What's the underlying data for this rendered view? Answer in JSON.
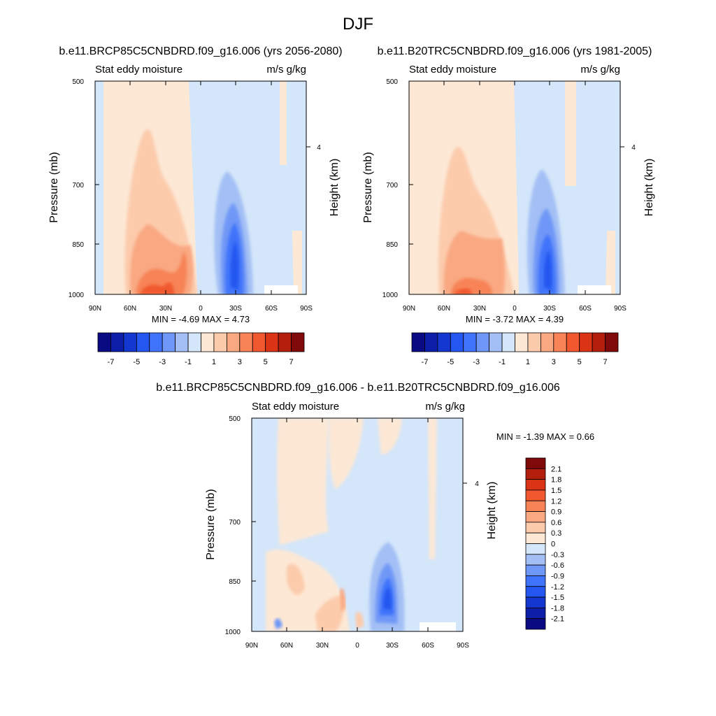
{
  "main_title": "DJF",
  "panels": [
    {
      "id": "future",
      "title": "b.e11.BRCP85C5CNBDRD.f09_g16.006 (yrs 2056-2080)",
      "left_label": "Stat eddy moisture",
      "right_label": "m/s g/kg",
      "ylabel": "Pressure (mb)",
      "ylabel_right": "Height (km)",
      "stats": "MIN =  -4.69  MAX =   4.73"
    },
    {
      "id": "present",
      "title": "b.e11.B20TRC5CNBDRD.f09_g16.006 (yrs 1981-2005)",
      "left_label": "Stat eddy moisture",
      "right_label": "m/s g/kg",
      "ylabel": "Pressure (mb)",
      "ylabel_right": "Height (km)",
      "stats": "MIN =  -3.72  MAX =   4.39"
    },
    {
      "id": "difference",
      "title": "b.e11.BRCP85C5CNBDRD.f09_g16.006 - b.e11.B20TRC5CNBDRD.f09_g16.006",
      "left_label": "Stat eddy moisture",
      "right_label": "m/s g/kg",
      "ylabel": "Pressure (mb)",
      "ylabel_right": "Height (km)",
      "stats": "MIN =  -1.39  MAX =   0.66"
    }
  ],
  "x_ticks": [
    "90N",
    "60N",
    "30N",
    "0",
    "30S",
    "60S",
    "90S"
  ],
  "y_ticks": [
    "500",
    "700",
    "850",
    "1000"
  ],
  "y_right_tick": "4",
  "colorbar_main": {
    "labels": [
      "-7",
      "-5",
      "-3",
      "-1",
      "1",
      "3",
      "5",
      "7"
    ],
    "colors": [
      "#0a0a82",
      "#0d1fa8",
      "#1437cf",
      "#2457f0",
      "#3f73fa",
      "#6f97f7",
      "#a3bff5",
      "#d4e6fa",
      "#fde8d5",
      "#fccbac",
      "#f9a882",
      "#f78356",
      "#f1582f",
      "#da3316",
      "#b41f0d",
      "#800a0a"
    ]
  },
  "colorbar_diff": {
    "labels": [
      "2.1",
      "1.8",
      "1.5",
      "1.2",
      "0.9",
      "0.6",
      "0.3",
      "0",
      "-0.3",
      "-0.6",
      "-0.9",
      "-1.2",
      "-1.5",
      "-1.8",
      "-2.1"
    ],
    "colors": [
      "#800a0a",
      "#b41f0d",
      "#da3316",
      "#f1582f",
      "#f78356",
      "#f9a882",
      "#fccbac",
      "#fde8d5",
      "#d4e6fa",
      "#a3bff5",
      "#6f97f7",
      "#3f73fa",
      "#2457f0",
      "#1437cf",
      "#0d1fa8",
      "#0a0a82"
    ]
  },
  "chart_data": [
    {
      "type": "heatmap",
      "title": "b.e11.BRCP85C5CNBDRD.f09_g16.006 (yrs 2056-2080)",
      "variable": "Stat eddy moisture",
      "units": "m/s g/kg",
      "xlabel": "",
      "ylabel": "Pressure (mb)",
      "x_ticks": [
        "90N",
        "60N",
        "30N",
        "0",
        "30S",
        "60S",
        "90S"
      ],
      "y_ticks": [
        500,
        700,
        850,
        1000
      ],
      "x_range": [
        90,
        -90
      ],
      "y_range": [
        500,
        1000
      ],
      "y_scale": "log",
      "min": -4.69,
      "max": 4.73,
      "regions": [
        {
          "lat": [
            90,
            0
          ],
          "p": [
            500,
            1000
          ],
          "value": 0.5
        },
        {
          "lat": [
            75,
            62
          ],
          "p": [
            500,
            1000
          ],
          "value": -0.5
        },
        {
          "lat": [
            65,
            10
          ],
          "p": [
            610,
            1000
          ],
          "value": 1.5
        },
        {
          "lat": [
            55,
            25
          ],
          "p": [
            820,
            1000
          ],
          "value": 2.5
        },
        {
          "lat": [
            45,
            20
          ],
          "p": [
            920,
            1000
          ],
          "value": 3.5
        },
        {
          "lat": [
            0,
            -90
          ],
          "p": [
            500,
            1000
          ],
          "value": -0.5
        },
        {
          "lat": [
            -18,
            -38
          ],
          "p": [
            680,
            1000
          ],
          "value": -1.5
        },
        {
          "lat": [
            -22,
            -34
          ],
          "p": [
            780,
            1000
          ],
          "value": -2.5
        },
        {
          "lat": [
            -25,
            -30
          ],
          "p": [
            840,
            1000
          ],
          "value": -3.5
        }
      ]
    },
    {
      "type": "heatmap",
      "title": "b.e11.B20TRC5CNBDRD.f09_g16.006 (yrs 1981-2005)",
      "variable": "Stat eddy moisture",
      "units": "m/s g/kg",
      "xlabel": "",
      "ylabel": "Pressure (mb)",
      "x_ticks": [
        "90N",
        "60N",
        "30N",
        "0",
        "30S",
        "60S",
        "90S"
      ],
      "y_ticks": [
        500,
        700,
        850,
        1000
      ],
      "x_range": [
        90,
        -90
      ],
      "y_range": [
        500,
        1000
      ],
      "y_scale": "log",
      "min": -3.72,
      "max": 4.39,
      "regions": [
        {
          "lat": [
            90,
            0
          ],
          "p": [
            500,
            1000
          ],
          "value": 0.5
        },
        {
          "lat": [
            65,
            10
          ],
          "p": [
            620,
            1000
          ],
          "value": 1.5
        },
        {
          "lat": [
            55,
            25
          ],
          "p": [
            830,
            1000
          ],
          "value": 2.5
        },
        {
          "lat": [
            50,
            30
          ],
          "p": [
            940,
            1000
          ],
          "value": 3.5
        },
        {
          "lat": [
            0,
            -90
          ],
          "p": [
            500,
            1000
          ],
          "value": -0.5
        },
        {
          "lat": [
            -18,
            -36
          ],
          "p": [
            690,
            1000
          ],
          "value": -1.5
        },
        {
          "lat": [
            -22,
            -33
          ],
          "p": [
            790,
            1000
          ],
          "value": -2.5
        },
        {
          "lat": [
            -25,
            -30
          ],
          "p": [
            860,
            1000
          ],
          "value": -3.5
        }
      ]
    },
    {
      "type": "heatmap",
      "title": "b.e11.BRCP85C5CNBDRD.f09_g16.006 - b.e11.B20TRC5CNBDRD.f09_g16.006",
      "variable": "Stat eddy moisture",
      "units": "m/s g/kg",
      "xlabel": "",
      "ylabel": "Pressure (mb)",
      "x_ticks": [
        "90N",
        "60N",
        "30N",
        "0",
        "30S",
        "60S",
        "90S"
      ],
      "y_ticks": [
        500,
        700,
        850,
        1000
      ],
      "x_range": [
        90,
        -90
      ],
      "y_range": [
        500,
        1000
      ],
      "y_scale": "log",
      "min": -1.39,
      "max": 0.66,
      "regions": [
        {
          "lat": [
            90,
            -90
          ],
          "p": [
            500,
            1000
          ],
          "value": -0.15
        },
        {
          "lat": [
            70,
            30
          ],
          "p": [
            500,
            760
          ],
          "value": 0.15
        },
        {
          "lat": [
            60,
            15
          ],
          "p": [
            770,
            1000
          ],
          "value": 0.15
        },
        {
          "lat": [
            50,
            25
          ],
          "p": [
            830,
            970
          ],
          "value": 0.45
        },
        {
          "lat": [
            -10,
            -30
          ],
          "p": [
            500,
            560
          ],
          "value": 0.15
        },
        {
          "lat": [
            -55,
            -65
          ],
          "p": [
            500,
            800
          ],
          "value": 0.15
        },
        {
          "lat": [
            -18,
            -40
          ],
          "p": [
            760,
            1000
          ],
          "value": -0.45
        },
        {
          "lat": [
            -22,
            -35
          ],
          "p": [
            810,
            990
          ],
          "value": -0.75
        },
        {
          "lat": [
            -25,
            -32
          ],
          "p": [
            850,
            960
          ],
          "value": -1.05
        }
      ]
    }
  ]
}
